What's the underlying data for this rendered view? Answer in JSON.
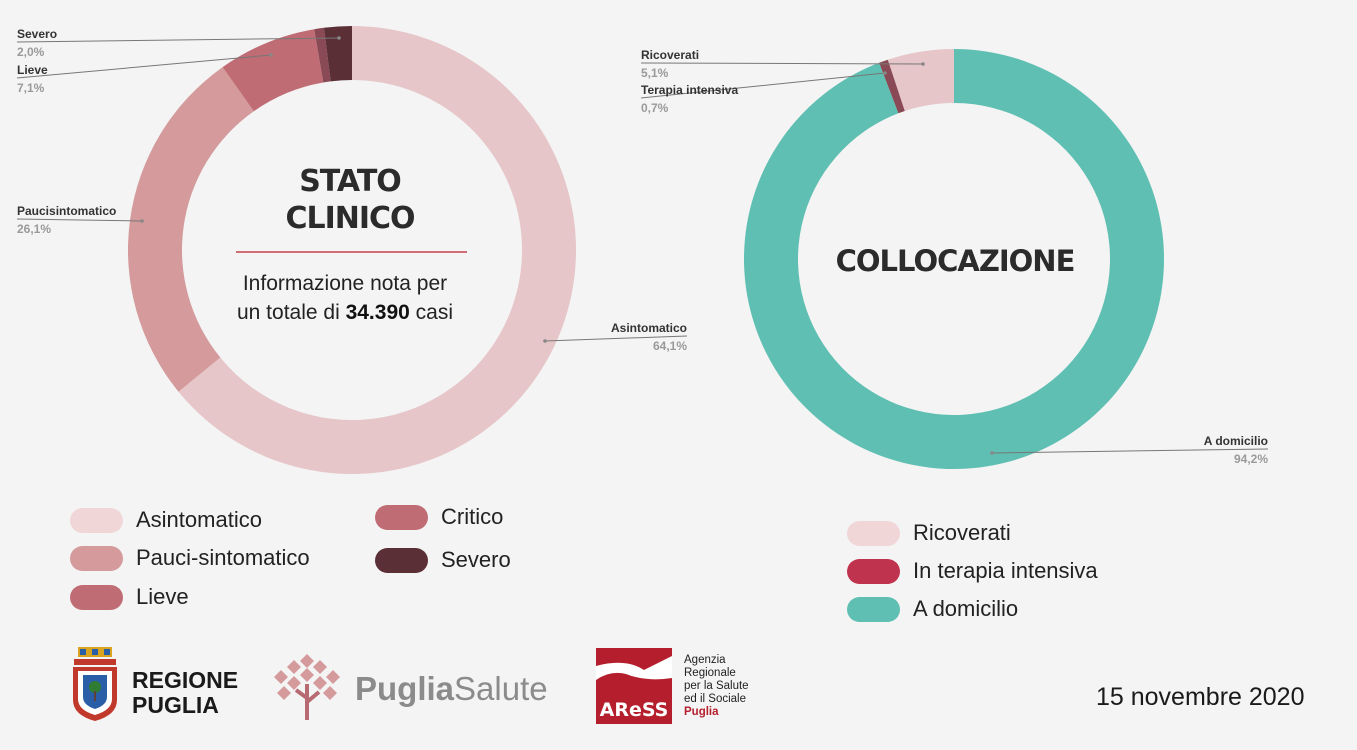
{
  "chart_data": [
    {
      "type": "donut",
      "title_line1": "STATO",
      "title_line2": "CLINICO",
      "subtitle_line1": "Informazione nota per",
      "subtitle_pre": "un totale di",
      "subtitle_num": "34.390",
      "subtitle_post": "casi",
      "slices": [
        {
          "label": "Asintomatico",
          "pct_label": "64,1%",
          "value": 64.1,
          "color": "#e6c6c9"
        },
        {
          "label": "Paucisintomatico",
          "pct_label": "26,1%",
          "value": 26.1,
          "color": "#d49a9c"
        },
        {
          "label": "Lieve",
          "pct_label": "7,1%",
          "value": 7.1,
          "color": "#c06c75"
        },
        {
          "label": "Critico",
          "pct_label": "",
          "value": 0.7,
          "color": "#8a4a55"
        },
        {
          "label": "Severo",
          "pct_label": "2,0%",
          "value": 2.0,
          "color": "#5a2f36"
        }
      ],
      "legend": [
        {
          "label": "Asintomatico",
          "color": "#f1d6d8"
        },
        {
          "label": "Pauci-sintomatico",
          "color": "#d49a9c"
        },
        {
          "label": "Lieve",
          "color": "#c06c75"
        },
        {
          "label": "Critico",
          "color": "#c06c75"
        },
        {
          "label": "Severo",
          "color": "#5a2f36"
        }
      ]
    },
    {
      "type": "donut",
      "title": "COLLOCAZIONE",
      "slices": [
        {
          "label": "A domicilio",
          "pct_label": "94,2%",
          "value": 94.2,
          "color": "#5fbfb2"
        },
        {
          "label": "Terapia intensiva",
          "pct_label": "0,7%",
          "value": 0.7,
          "color": "#8a4a55"
        },
        {
          "label": "Ricoverati",
          "pct_label": "5,1%",
          "value": 5.1,
          "color": "#e6c6c9"
        }
      ],
      "legend": [
        {
          "label": "Ricoverati",
          "color": "#f1d6d8"
        },
        {
          "label": "In terapia intensiva",
          "color": "#c0334e"
        },
        {
          "label": "A domicilio",
          "color": "#5fbfb2"
        }
      ]
    }
  ],
  "footer": {
    "regione_line1": "REGIONE",
    "regione_line2": "PUGLIA",
    "puglia": "Puglia",
    "salute": "Salute",
    "aress_logo": "AReSS",
    "aress_line1": "Agenzia",
    "aress_line2": "Regionale",
    "aress_line3": "per la Salute",
    "aress_line4": "ed il Sociale",
    "aress_line5": "Puglia",
    "date": "15 novembre 2020"
  }
}
